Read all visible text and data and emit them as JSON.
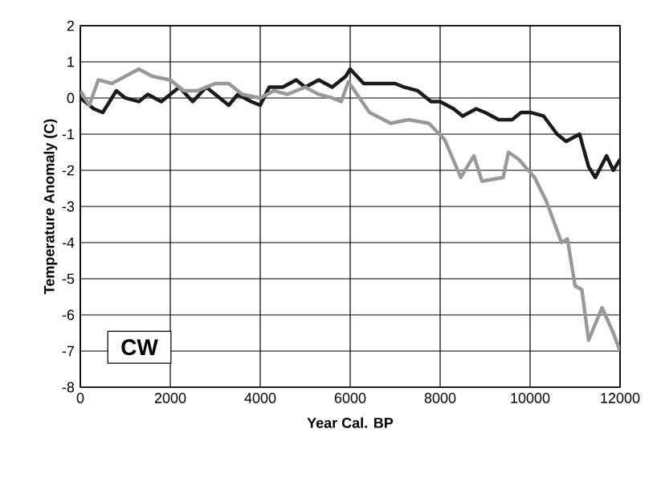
{
  "chart_data": {
    "type": "line",
    "xlabel": "Year Cal. BP",
    "ylabel": "Temperature Anomaly (C)",
    "xlim": [
      0,
      12000
    ],
    "xticks": [
      0,
      2000,
      4000,
      6000,
      8000,
      10000,
      12000
    ],
    "ylim": [
      -8,
      2
    ],
    "yticks": [
      -8,
      -7,
      -6,
      -5,
      -4,
      -3,
      -2,
      -1,
      0,
      1,
      2
    ],
    "grid": true,
    "annotations": [
      "CW"
    ],
    "series": [
      {
        "color": "#1a1a1a",
        "x": [
          0,
          300,
          500,
          800,
          1000,
          1300,
          1500,
          1800,
          2000,
          2200,
          2500,
          2800,
          3000,
          3300,
          3500,
          3800,
          4000,
          4200,
          4500,
          4800,
          5000,
          5300,
          5600,
          5900,
          6000,
          6300,
          6600,
          7000,
          7200,
          7500,
          7800,
          8000,
          8300,
          8500,
          8800,
          9000,
          9300,
          9600,
          9800,
          10000,
          10300,
          10600,
          10800,
          11100,
          11300,
          11450,
          11700,
          11850,
          12000
        ],
        "values": [
          0,
          -0.3,
          -0.4,
          0.2,
          0,
          -0.1,
          0.1,
          -0.1,
          0.1,
          0.3,
          -0.1,
          0.3,
          0.1,
          -0.2,
          0.1,
          -0.1,
          -0.2,
          0.3,
          0.3,
          0.5,
          0.3,
          0.5,
          0.3,
          0.6,
          0.8,
          0.4,
          0.4,
          0.4,
          0.3,
          0.2,
          -0.1,
          -0.1,
          -0.3,
          -0.5,
          -0.3,
          -0.4,
          -0.6,
          -0.6,
          -0.4,
          -0.4,
          -0.5,
          -1.0,
          -1.2,
          -1.0,
          -1.9,
          -2.2,
          -1.6,
          -2.0,
          -1.7
        ]
      },
      {
        "color": "#999999",
        "x": [
          0,
          200,
          400,
          700,
          1000,
          1300,
          1600,
          2000,
          2300,
          2600,
          3000,
          3300,
          3600,
          4000,
          4300,
          4600,
          5000,
          5300,
          5600,
          5800,
          5960,
          6430,
          6900,
          7300,
          7750,
          8100,
          8460,
          8750,
          8930,
          9400,
          9520,
          9750,
          10100,
          10360,
          10700,
          10830,
          11000,
          11150,
          11300,
          11600,
          11850,
          12000
        ],
        "values": [
          0.2,
          -0.2,
          0.5,
          0.4,
          0.6,
          0.8,
          0.6,
          0.5,
          0.2,
          0.2,
          0.4,
          0.4,
          0.1,
          0,
          0.2,
          0.1,
          0.3,
          0.1,
          0,
          -0.1,
          0.45,
          -0.4,
          -0.7,
          -0.6,
          -0.7,
          -1.15,
          -2.2,
          -1.6,
          -2.3,
          -2.2,
          -1.5,
          -1.7,
          -2.2,
          -2.85,
          -4.0,
          -3.9,
          -5.2,
          -5.3,
          -6.7,
          -5.8,
          -6.5,
          -7.0
        ]
      }
    ]
  }
}
